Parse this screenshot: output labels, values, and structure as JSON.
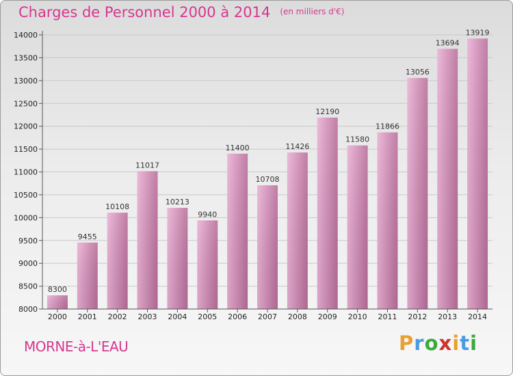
{
  "header": {
    "title": "Charges de Personnel 2000 à 2014",
    "unit": "(en milliers d'€)"
  },
  "footer": {
    "commune": "MORNE-à-L'EAU",
    "logo": "Proxiti"
  },
  "colors": {
    "title": "#d7368f",
    "bar_light": "#eab0d4",
    "bar_dark": "#b86d9a"
  },
  "chart_data": {
    "type": "bar",
    "title": "Charges de Personnel 2000 à 2014",
    "subtitle": "(en milliers d'€)",
    "categories": [
      "2000",
      "2001",
      "2002",
      "2003",
      "2004",
      "2005",
      "2006",
      "2007",
      "2008",
      "2009",
      "2010",
      "2011",
      "2012",
      "2013",
      "2014"
    ],
    "values": [
      8300,
      9455,
      10108,
      11017,
      10213,
      9940,
      11400,
      10708,
      11426,
      12190,
      11580,
      11866,
      13056,
      13694,
      13919
    ],
    "ylim": [
      8000,
      14000
    ],
    "yticks": [
      8000,
      8500,
      9000,
      9500,
      10000,
      10500,
      11000,
      11500,
      12000,
      12500,
      13000,
      13500,
      14000
    ],
    "grid": true,
    "data_labels": true
  }
}
